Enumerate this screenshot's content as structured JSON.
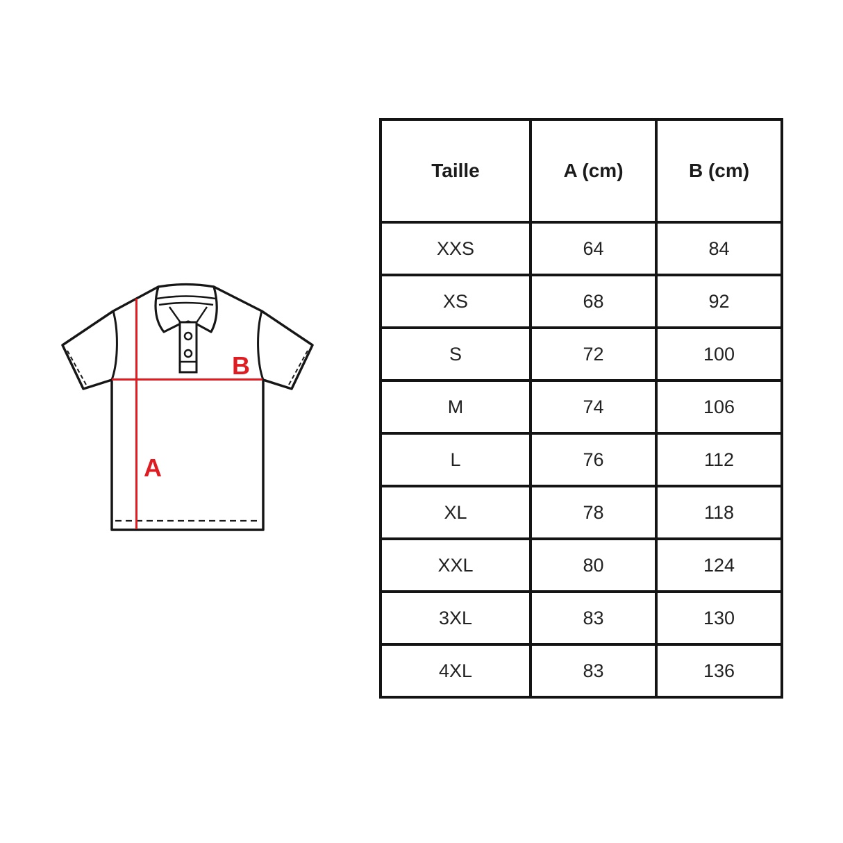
{
  "page": {
    "background": "#ffffff"
  },
  "diagram": {
    "name": "polo-shirt-measurement-diagram",
    "labels": {
      "a": "A",
      "b": "B"
    },
    "colors": {
      "measure_line": "#e01c23",
      "outline": "#161616"
    }
  },
  "size_table": {
    "type": "table",
    "headers": [
      "Taille",
      "A (cm)",
      "B (cm)"
    ],
    "rows": [
      [
        "XXS",
        "64",
        "84"
      ],
      [
        "XS",
        "68",
        "92"
      ],
      [
        "S",
        "72",
        "100"
      ],
      [
        "M",
        "74",
        "106"
      ],
      [
        "L",
        "76",
        "112"
      ],
      [
        "XL",
        "78",
        "118"
      ],
      [
        "XXL",
        "80",
        "124"
      ],
      [
        "3XL",
        "83",
        "130"
      ],
      [
        "4XL",
        "83",
        "136"
      ]
    ]
  }
}
